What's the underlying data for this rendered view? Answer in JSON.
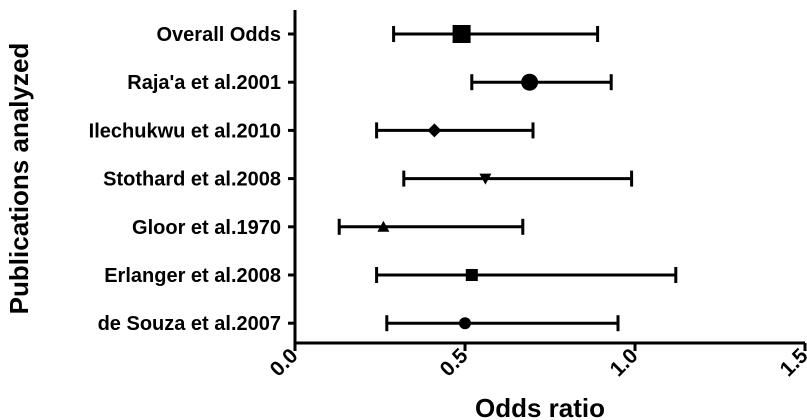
{
  "chart_data": {
    "type": "scatter",
    "subtype": "forest-plot",
    "xlabel": "Odds ratio",
    "ylabel": "Publications analyzed",
    "xlim": [
      0.0,
      1.5
    ],
    "xticks": [
      "0.0",
      "0.5",
      "1.0",
      "1.5"
    ],
    "grid": false,
    "colors": {
      "marker": "#000000",
      "axis": "#000000"
    },
    "rows": [
      {
        "label": "Overall Odds",
        "estimate": 0.49,
        "lower": 0.29,
        "upper": 0.89,
        "marker": "square-large"
      },
      {
        "label": "Raja'a et al.2001",
        "estimate": 0.69,
        "lower": 0.52,
        "upper": 0.93,
        "marker": "circle-large"
      },
      {
        "label": "Ilechukwu et al.2010",
        "estimate": 0.41,
        "lower": 0.24,
        "upper": 0.7,
        "marker": "diamond"
      },
      {
        "label": "Stothard et al.2008",
        "estimate": 0.56,
        "lower": 0.32,
        "upper": 0.99,
        "marker": "triangle-down"
      },
      {
        "label": "Gloor et al.1970",
        "estimate": 0.26,
        "lower": 0.13,
        "upper": 0.67,
        "marker": "triangle-up"
      },
      {
        "label": "Erlanger et al.2008",
        "estimate": 0.52,
        "lower": 0.24,
        "upper": 1.12,
        "marker": "square-small"
      },
      {
        "label": "de Souza et al.2007",
        "estimate": 0.5,
        "lower": 0.27,
        "upper": 0.95,
        "marker": "circle-small"
      }
    ]
  }
}
